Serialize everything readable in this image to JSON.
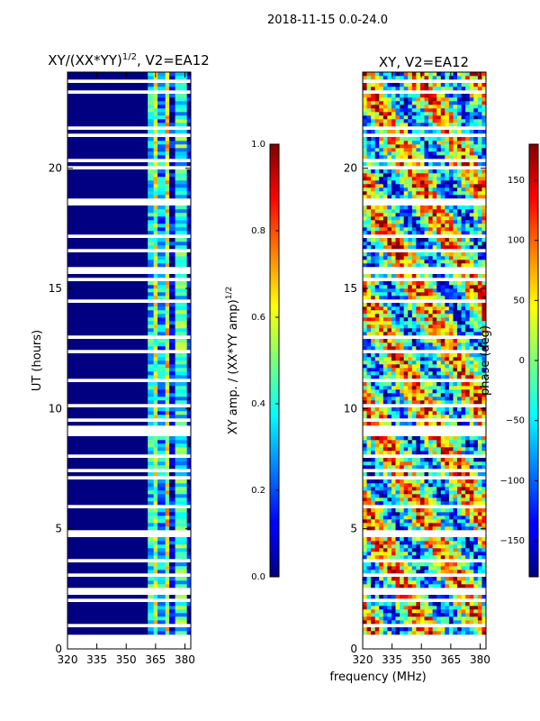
{
  "figure": {
    "suptitle": "2018-11-15 0.0-24.0",
    "shared_xlabel": "frequency (MHz)",
    "shared_ylabel": "UT (hours)"
  },
  "chart_data": [
    {
      "type": "heatmap",
      "panel": "amplitude",
      "title_main": "XY/(XX*YY)",
      "title_exp": "1/2",
      "title_suffix": ", V2=EA12",
      "xlabel": "frequency (MHz)",
      "ylabel": "UT (hours)",
      "xlim": [
        320,
        383
      ],
      "ylim": [
        0,
        24
      ],
      "xticks": [
        320,
        335,
        350,
        365,
        380
      ],
      "yticks": [
        0,
        5,
        10,
        15,
        20
      ],
      "colorbar": {
        "label_main": "XY amp. / (XX*YY amp)",
        "label_exp": "1/2",
        "range": [
          0.0,
          1.0
        ],
        "ticks": [
          "0.0",
          "0.2",
          "0.4",
          "0.6",
          "0.8",
          "1.0"
        ]
      },
      "bands": [
        {
          "from_mhz": 320,
          "to_mhz": 361,
          "value": 0.0
        },
        {
          "from_mhz": 361,
          "to_mhz": 364,
          "value": 0.35
        },
        {
          "from_mhz": 364,
          "to_mhz": 366,
          "value": 0.55
        },
        {
          "from_mhz": 366,
          "to_mhz": 370,
          "value": 0.3
        },
        {
          "from_mhz": 370,
          "to_mhz": 372,
          "value": 0.6
        },
        {
          "from_mhz": 372,
          "to_mhz": 375,
          "value": 0.1
        },
        {
          "from_mhz": 375,
          "to_mhz": 381,
          "value": 0.4
        },
        {
          "from_mhz": 381,
          "to_mhz": 383,
          "value": 0.05
        }
      ]
    },
    {
      "type": "heatmap",
      "panel": "phase",
      "title_main": "XY, V2=EA12",
      "xlabel": "frequency (MHz)",
      "ylabel": "",
      "xlim": [
        320,
        383
      ],
      "ylim": [
        0,
        24
      ],
      "xticks": [
        320,
        335,
        350,
        365,
        380
      ],
      "yticks": [
        0,
        5,
        10,
        15,
        20
      ],
      "colorbar": {
        "label": "phase (deg)",
        "range": [
          -180,
          180
        ],
        "ticks": [
          "150",
          "100",
          "50",
          "0",
          "−50",
          "−100",
          "−150"
        ]
      }
    }
  ]
}
